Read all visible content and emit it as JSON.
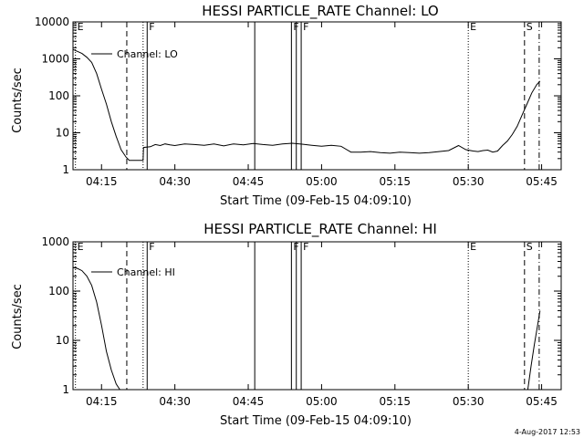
{
  "chart_data": [
    {
      "type": "line",
      "title": "HESSI PARTICLE_RATE Channel: LO",
      "xlabel": "Start Time (09-Feb-15 04:09:10)",
      "ylabel": "Counts/sec",
      "yscale": "log",
      "ylim": [
        1,
        10000
      ],
      "xlim": [
        "04:09:10",
        "05:49:00"
      ],
      "x_ticks": [
        "04:15",
        "04:30",
        "04:45",
        "05:00",
        "05:15",
        "05:30",
        "05:45"
      ],
      "y_ticks": [
        "1",
        "10",
        "100",
        "1000",
        "10000"
      ],
      "legend": {
        "entries": [
          "Channel: LO"
        ],
        "placement": "top-left"
      },
      "markers": [
        {
          "time": "04:09:40",
          "style": "dotted",
          "label": "E"
        },
        {
          "time": "04:20:10",
          "style": "dashed",
          "label": ""
        },
        {
          "time": "04:23:30",
          "style": "dotted",
          "label": ""
        },
        {
          "time": "04:24:20",
          "style": "solid",
          "label": "F"
        },
        {
          "time": "04:46:20",
          "style": "solid",
          "label": ""
        },
        {
          "time": "04:53:50",
          "style": "solid",
          "label": "F"
        },
        {
          "time": "04:54:50",
          "style": "solid",
          "label": ""
        },
        {
          "time": "04:55:50",
          "style": "solid",
          "label": "F"
        },
        {
          "time": "05:30:00",
          "style": "dotted",
          "label": "E"
        },
        {
          "time": "05:41:30",
          "style": "dashed",
          "label": "S"
        },
        {
          "time": "05:44:30",
          "style": "dashdot",
          "label": ""
        }
      ],
      "series": [
        {
          "x": [
            "04:09:10",
            "04:10:00",
            "04:11:00",
            "04:12:00",
            "04:13:00",
            "04:14:00",
            "04:15:00",
            "04:16:00",
            "04:17:00",
            "04:18:00",
            "04:19:00",
            "04:20:00",
            "04:20:40",
            "04:23:30",
            "04:23:35",
            "04:25:00",
            "04:26:00",
            "04:27:00",
            "04:28:00",
            "04:29:00",
            "04:30:00",
            "04:32:00",
            "04:34:00",
            "04:36:00",
            "04:38:00",
            "04:40:00",
            "04:42:00",
            "04:44:00",
            "04:46:00",
            "04:48:00",
            "04:50:00",
            "04:52:00",
            "04:54:00",
            "04:56:00",
            "04:58:00",
            "05:00:00",
            "05:02:00",
            "05:04:00",
            "05:06:00",
            "05:08:00",
            "05:10:00",
            "05:12:00",
            "05:14:00",
            "05:16:00",
            "05:18:00",
            "05:20:00",
            "05:22:00",
            "05:24:00",
            "05:26:00",
            "05:28:00",
            "05:29:30",
            "05:31:00",
            "05:32:00",
            "05:33:00",
            "05:34:00",
            "05:35:00",
            "05:36:00",
            "05:37:00",
            "05:38:00",
            "05:39:00",
            "05:40:00",
            "05:41:00",
            "05:42:00",
            "05:43:00",
            "05:44:00",
            "05:44:40"
          ],
          "y": [
            1800,
            1600,
            1400,
            1100,
            800,
            400,
            150,
            60,
            20,
            8,
            3.5,
            2.2,
            1.8,
            1.8,
            4,
            4.2,
            4.8,
            4.5,
            5,
            4.7,
            4.5,
            5,
            4.8,
            4.6,
            5,
            4.4,
            5,
            4.7,
            5.1,
            4.8,
            4.6,
            5,
            5.2,
            4.9,
            4.6,
            4.3,
            4.6,
            4.3,
            3.0,
            3.0,
            3.1,
            2.9,
            2.8,
            3.0,
            2.9,
            2.8,
            2.9,
            3.1,
            3.3,
            4.5,
            3.5,
            3.2,
            3.1,
            3.3,
            3.4,
            3.0,
            3.2,
            4.5,
            6,
            9,
            15,
            30,
            60,
            120,
            200,
            250
          ]
        }
      ]
    },
    {
      "type": "line",
      "title": "HESSI PARTICLE_RATE Channel: HI",
      "xlabel": "Start Time (09-Feb-15 04:09:10)",
      "ylabel": "Counts/sec",
      "yscale": "log",
      "ylim": [
        1,
        1000
      ],
      "xlim": [
        "04:09:10",
        "05:49:00"
      ],
      "x_ticks": [
        "04:15",
        "04:30",
        "04:45",
        "05:00",
        "05:15",
        "05:30",
        "05:45"
      ],
      "y_ticks": [
        "1",
        "10",
        "100",
        "1000"
      ],
      "legend": {
        "entries": [
          "Channel: HI"
        ],
        "placement": "top-left"
      },
      "markers": [
        {
          "time": "04:09:40",
          "style": "dotted",
          "label": "E"
        },
        {
          "time": "04:20:10",
          "style": "dashed",
          "label": ""
        },
        {
          "time": "04:23:30",
          "style": "dotted",
          "label": ""
        },
        {
          "time": "04:24:20",
          "style": "solid",
          "label": "F"
        },
        {
          "time": "04:46:20",
          "style": "solid",
          "label": ""
        },
        {
          "time": "04:53:50",
          "style": "solid",
          "label": "F"
        },
        {
          "time": "04:54:50",
          "style": "solid",
          "label": ""
        },
        {
          "time": "04:55:50",
          "style": "solid",
          "label": "F"
        },
        {
          "time": "05:30:00",
          "style": "dotted",
          "label": "E"
        },
        {
          "time": "05:41:30",
          "style": "dashed",
          "label": "S"
        },
        {
          "time": "05:44:30",
          "style": "dashdot",
          "label": ""
        }
      ],
      "series": [
        {
          "x": [
            "04:09:10",
            "04:10:00",
            "04:11:00",
            "04:12:00",
            "04:13:00",
            "04:14:00",
            "04:15:00",
            "04:16:00",
            "04:17:00",
            "04:18:00",
            "04:18:45"
          ],
          "y": [
            300,
            290,
            260,
            200,
            130,
            60,
            20,
            6,
            2.5,
            1.3,
            1
          ]
        },
        {
          "x": [
            "05:42:10",
            "05:42:50",
            "05:43:30",
            "05:44:10",
            "05:44:40"
          ],
          "y": [
            1,
            3,
            8,
            20,
            40
          ]
        }
      ]
    }
  ],
  "footer": {
    "timestamp": "4-Aug-2017 12:53"
  }
}
